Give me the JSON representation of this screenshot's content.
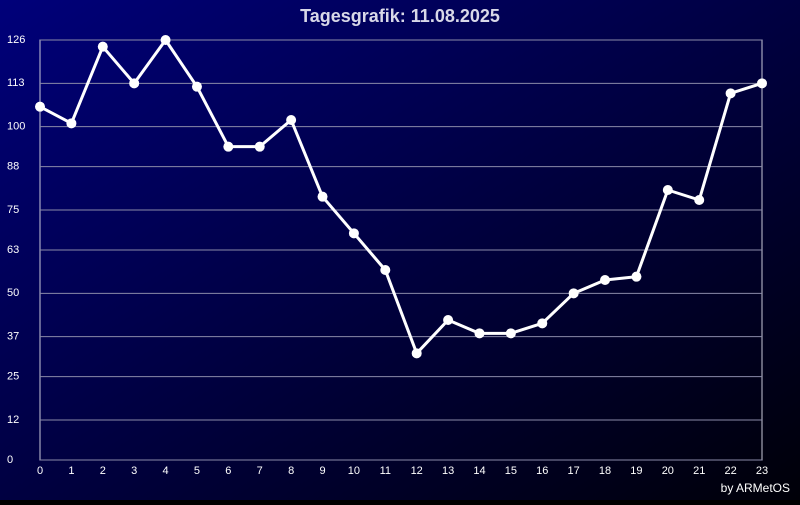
{
  "chart_data": {
    "type": "line",
    "title": "Tagesgrafik: 11.08.2025",
    "footer": "by ARMetOS",
    "x": [
      0,
      1,
      2,
      3,
      4,
      5,
      6,
      7,
      8,
      9,
      10,
      11,
      12,
      13,
      14,
      15,
      16,
      17,
      18,
      19,
      20,
      21,
      22,
      23
    ],
    "series": [
      {
        "color": "#ffffff",
        "values": [
          106,
          101,
          124,
          113,
          126,
          112,
          94,
          94,
          102,
          79,
          68,
          57,
          32,
          42,
          38,
          38,
          41,
          50,
          54,
          55,
          81,
          78,
          110,
          113
        ]
      }
    ],
    "xlim": [
      0,
      23
    ],
    "xticks": [
      0,
      1,
      2,
      3,
      4,
      5,
      6,
      7,
      8,
      9,
      10,
      11,
      12,
      13,
      14,
      15,
      16,
      17,
      18,
      19,
      20,
      21,
      22,
      23
    ],
    "ylim": [
      0,
      126
    ],
    "yticks": [
      0,
      12,
      25,
      37,
      50,
      63,
      75,
      88,
      100,
      113,
      126
    ],
    "grid": true
  }
}
